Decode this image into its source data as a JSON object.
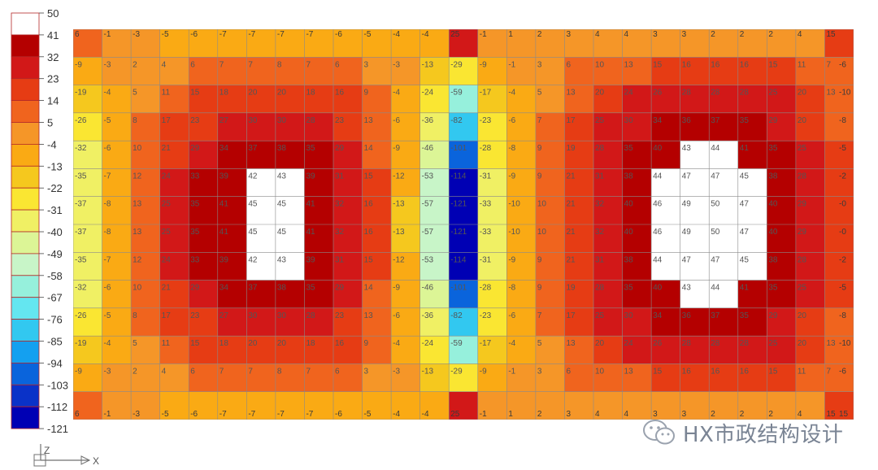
{
  "legend": {
    "values": [
      "50",
      "41",
      "32",
      "23",
      "14",
      "5",
      "-4",
      "-13",
      "-22",
      "-31",
      "-40",
      "-49",
      "-58",
      "-67",
      "-76",
      "-85",
      "-94",
      "-103",
      "-112",
      "-121"
    ],
    "colors": [
      "#ffffff",
      "#b40000",
      "#d21818",
      "#e63c14",
      "#f0641e",
      "#f59628",
      "#faaa14",
      "#f5c81e",
      "#fae632",
      "#f0f064",
      "#dcf596",
      "#c8f5c8",
      "#96f0dc",
      "#64e6f0",
      "#32c8f0",
      "#14a0f0",
      "#0a64dc",
      "#0a32c8",
      "#0000b4"
    ]
  },
  "triad": {
    "z_label": "Z",
    "x_label": "X"
  },
  "watermark": {
    "text": "HX市政结构设计",
    "icon": "wechat-icon"
  },
  "chart_data": {
    "type": "heatmap",
    "title": "",
    "xlabel": "",
    "ylabel": "",
    "grid": true,
    "colorbar_range": [
      -121,
      50
    ],
    "top_edge_labels": [
      "6",
      "-1",
      "-3",
      "-5",
      "-6",
      "-7",
      "-7",
      "-7",
      "-7",
      "-6",
      "-5",
      "-4",
      "-4",
      "25",
      "-1",
      "1",
      "2",
      "3",
      "4",
      "4",
      "3",
      "3",
      "2",
      "2",
      "2",
      "4",
      "15"
    ],
    "right_edge_labels": [
      "-6",
      "-10",
      "-8",
      "-5",
      "-2",
      "-0",
      "-0",
      "-2",
      "-5",
      "-8",
      "-10",
      "-6"
    ],
    "rows": [
      [
        "-9",
        "-3",
        "2",
        "4",
        "6",
        "7",
        "7",
        "8",
        "7",
        "6",
        "3",
        "-3",
        "-13",
        "-29",
        "-9",
        "-1",
        "3",
        "6",
        "10",
        "13",
        "15",
        "16",
        "16",
        "16",
        "15",
        "11",
        "7"
      ],
      [
        "-19",
        "-4",
        "5",
        "11",
        "15",
        "18",
        "20",
        "20",
        "18",
        "16",
        "9",
        "-4",
        "-24",
        "-59",
        "-17",
        "-4",
        "5",
        "13",
        "20",
        "24",
        "26",
        "28",
        "28",
        "28",
        "25",
        "20",
        "13"
      ],
      [
        "-26",
        "-5",
        "8",
        "17",
        "23",
        "27",
        "30",
        "30",
        "28",
        "23",
        "13",
        "-6",
        "-36",
        "-82",
        "-23",
        "-6",
        "7",
        "17",
        "25",
        "30",
        "34",
        "36",
        "37",
        "35",
        "29",
        "20",
        ""
      ],
      [
        "-32",
        "-6",
        "10",
        "21",
        "29",
        "34",
        "37",
        "38",
        "35",
        "29",
        "14",
        "-9",
        "-46",
        "-101",
        "-28",
        "-8",
        "9",
        "19",
        "28",
        "35",
        "40",
        "43",
        "44",
        "41",
        "35",
        "25",
        ""
      ],
      [
        "-35",
        "-7",
        "12",
        "24",
        "33",
        "39",
        "42",
        "43",
        "39",
        "31",
        "15",
        "-12",
        "-53",
        "-114",
        "-31",
        "-9",
        "9",
        "21",
        "31",
        "38",
        "44",
        "47",
        "47",
        "45",
        "38",
        "28",
        ""
      ],
      [
        "-37",
        "-8",
        "13",
        "25",
        "35",
        "41",
        "45",
        "45",
        "41",
        "32",
        "16",
        "-13",
        "-57",
        "-121",
        "-33",
        "-10",
        "10",
        "21",
        "32",
        "40",
        "46",
        "49",
        "50",
        "47",
        "40",
        "29",
        ""
      ],
      [
        "-37",
        "-8",
        "13",
        "25",
        "35",
        "41",
        "45",
        "45",
        "41",
        "32",
        "16",
        "-13",
        "-57",
        "-121",
        "-33",
        "-10",
        "10",
        "21",
        "32",
        "40",
        "46",
        "49",
        "50",
        "47",
        "40",
        "29",
        ""
      ],
      [
        "-35",
        "-7",
        "12",
        "24",
        "33",
        "39",
        "42",
        "43",
        "39",
        "31",
        "15",
        "-12",
        "-53",
        "-114",
        "-31",
        "-9",
        "9",
        "21",
        "31",
        "38",
        "44",
        "47",
        "47",
        "45",
        "38",
        "28",
        ""
      ],
      [
        "-32",
        "-6",
        "10",
        "21",
        "29",
        "34",
        "37",
        "38",
        "35",
        "29",
        "14",
        "-9",
        "-46",
        "-101",
        "-28",
        "-8",
        "9",
        "19",
        "28",
        "35",
        "40",
        "43",
        "44",
        "41",
        "35",
        "25",
        ""
      ],
      [
        "-26",
        "-5",
        "8",
        "17",
        "23",
        "27",
        "30",
        "30",
        "28",
        "23",
        "13",
        "-6",
        "-36",
        "-82",
        "-23",
        "-6",
        "7",
        "17",
        "25",
        "30",
        "34",
        "36",
        "37",
        "35",
        "29",
        "20",
        ""
      ],
      [
        "-19",
        "-4",
        "5",
        "11",
        "15",
        "18",
        "20",
        "20",
        "18",
        "16",
        "9",
        "-4",
        "-24",
        "-59",
        "-17",
        "-4",
        "5",
        "13",
        "20",
        "24",
        "26",
        "28",
        "28",
        "28",
        "25",
        "20",
        "13"
      ],
      [
        "-9",
        "-3",
        "2",
        "4",
        "6",
        "7",
        "7",
        "8",
        "7",
        "6",
        "3",
        "-3",
        "-13",
        "-29",
        "-9",
        "-1",
        "3",
        "6",
        "10",
        "13",
        "15",
        "16",
        "16",
        "16",
        "15",
        "11",
        "7"
      ]
    ],
    "bottom_edge_labels": [
      "6",
      "-1",
      "-3",
      "-5",
      "-6",
      "-7",
      "-7",
      "-7",
      "-7",
      "-6",
      "-5",
      "-4",
      "-4",
      "25",
      "-1",
      "1",
      "2",
      "3",
      "4",
      "4",
      "3",
      "3",
      "2",
      "2",
      "2",
      "4",
      "15"
    ],
    "right_edge_bottom_label": "15"
  }
}
